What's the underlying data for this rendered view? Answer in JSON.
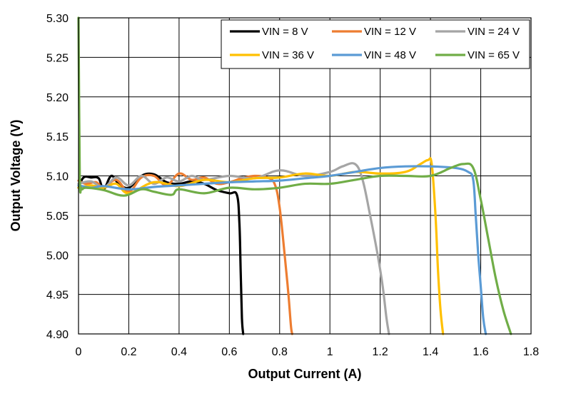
{
  "chart_data": {
    "type": "line",
    "xlabel": "Output Current (A)",
    "ylabel": "Output Voltage (V)",
    "xlim": [
      0,
      1.8
    ],
    "ylim": [
      4.9,
      5.3
    ],
    "x_ticks": [
      "0",
      "0.2",
      "0.4",
      "0.6",
      "0.8",
      "1",
      "1.2",
      "1.4",
      "1.6",
      "1.8"
    ],
    "y_ticks": [
      "4.90",
      "4.95",
      "5.00",
      "5.05",
      "5.10",
      "5.15",
      "5.20",
      "5.25",
      "5.30"
    ],
    "grid": true,
    "legend_position": "top-right",
    "series": [
      {
        "name": "VIN = 8 V",
        "color": "#000000",
        "x": [
          0.0,
          0.02,
          0.05,
          0.08,
          0.1,
          0.13,
          0.16,
          0.2,
          0.25,
          0.3,
          0.35,
          0.4,
          0.45,
          0.5,
          0.55,
          0.6,
          0.63,
          0.64,
          0.645,
          0.65,
          0.655
        ],
        "y": [
          5.085,
          5.098,
          5.098,
          5.097,
          5.083,
          5.1,
          5.09,
          5.085,
          5.1,
          5.102,
          5.092,
          5.09,
          5.093,
          5.09,
          5.082,
          5.078,
          5.076,
          5.04,
          4.98,
          4.92,
          4.9
        ]
      },
      {
        "name": "VIN = 12 V",
        "color": "#ED7D31",
        "x": [
          0.0,
          0.03,
          0.07,
          0.1,
          0.15,
          0.2,
          0.25,
          0.3,
          0.35,
          0.4,
          0.45,
          0.5,
          0.55,
          0.6,
          0.65,
          0.7,
          0.75,
          0.78,
          0.8,
          0.82,
          0.835,
          0.845,
          0.85
        ],
        "y": [
          5.094,
          5.09,
          5.092,
          5.085,
          5.095,
          5.08,
          5.098,
          5.1,
          5.088,
          5.103,
          5.095,
          5.098,
          5.09,
          5.092,
          5.097,
          5.1,
          5.098,
          5.09,
          5.06,
          5.0,
          4.95,
          4.91,
          4.9
        ]
      },
      {
        "name": "VIN = 24 V",
        "color": "#A5A5A5",
        "x": [
          0.0,
          0.05,
          0.1,
          0.15,
          0.2,
          0.25,
          0.3,
          0.35,
          0.4,
          0.45,
          0.5,
          0.6,
          0.7,
          0.8,
          0.9,
          1.0,
          1.05,
          1.1,
          1.13,
          1.16,
          1.19,
          1.21,
          1.225,
          1.235
        ],
        "y": [
          5.09,
          5.093,
          5.085,
          5.098,
          5.088,
          5.1,
          5.09,
          5.098,
          5.093,
          5.1,
          5.095,
          5.1,
          5.097,
          5.107,
          5.1,
          5.105,
          5.112,
          5.115,
          5.095,
          5.05,
          5.0,
          4.96,
          4.92,
          4.9
        ]
      },
      {
        "name": "VIN = 36 V",
        "color": "#FFC000",
        "x": [
          0.0,
          0.05,
          0.1,
          0.15,
          0.2,
          0.3,
          0.4,
          0.5,
          0.6,
          0.7,
          0.8,
          0.9,
          1.0,
          1.1,
          1.2,
          1.3,
          1.36,
          1.39,
          1.405,
          1.42,
          1.43,
          1.44,
          1.45
        ],
        "y": [
          5.085,
          5.088,
          5.085,
          5.09,
          5.078,
          5.092,
          5.087,
          5.095,
          5.092,
          5.097,
          5.098,
          5.103,
          5.1,
          5.105,
          5.103,
          5.105,
          5.115,
          5.12,
          5.115,
          5.05,
          4.98,
          4.93,
          4.9
        ]
      },
      {
        "name": "VIN = 48 V",
        "color": "#5B9BD5",
        "x": [
          0.0,
          0.05,
          0.1,
          0.2,
          0.3,
          0.4,
          0.5,
          0.6,
          0.7,
          0.8,
          0.9,
          1.0,
          1.1,
          1.2,
          1.3,
          1.4,
          1.5,
          1.55,
          1.57,
          1.58,
          1.59,
          1.6,
          1.61,
          1.62
        ],
        "y": [
          5.088,
          5.085,
          5.087,
          5.083,
          5.086,
          5.088,
          5.09,
          5.092,
          5.093,
          5.094,
          5.097,
          5.1,
          5.105,
          5.11,
          5.112,
          5.112,
          5.11,
          5.105,
          5.095,
          5.05,
          5.0,
          4.96,
          4.92,
          4.9
        ]
      },
      {
        "name": "VIN = 65 V",
        "color": "#70AD47",
        "x": [
          0.0,
          0.005,
          0.01,
          0.015,
          0.03,
          0.1,
          0.18,
          0.25,
          0.3,
          0.37,
          0.4,
          0.5,
          0.6,
          0.7,
          0.8,
          0.9,
          1.0,
          1.1,
          1.2,
          1.3,
          1.4,
          1.48,
          1.53,
          1.57,
          1.6,
          1.63,
          1.66,
          1.69,
          1.72
        ],
        "y": [
          5.3,
          5.1,
          5.085,
          5.083,
          5.085,
          5.082,
          5.075,
          5.083,
          5.08,
          5.076,
          5.083,
          5.078,
          5.085,
          5.083,
          5.085,
          5.09,
          5.09,
          5.095,
          5.1,
          5.1,
          5.1,
          5.11,
          5.115,
          5.11,
          5.07,
          5.02,
          4.97,
          4.93,
          4.9
        ]
      }
    ]
  }
}
